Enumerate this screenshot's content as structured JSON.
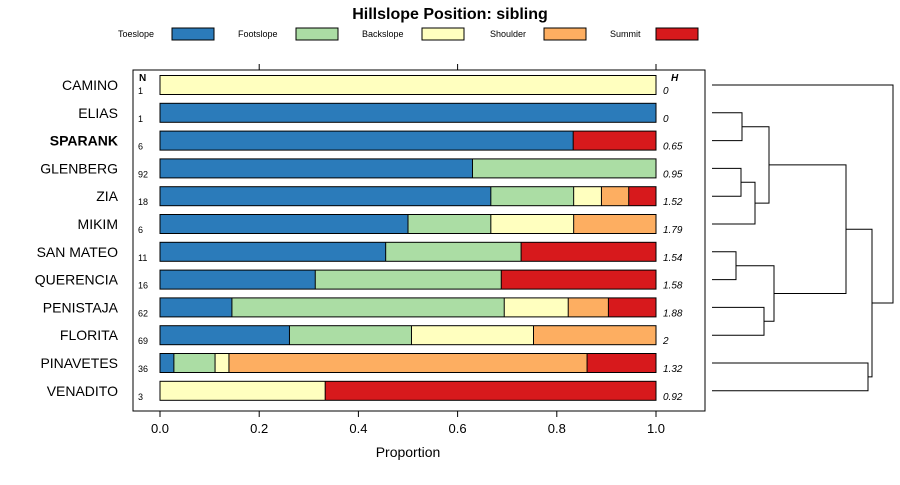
{
  "chart_data": {
    "type": "bar",
    "stacked": true,
    "orientation": "horizontal",
    "title": "Hillslope Position: sibling",
    "xlabel": "Proportion",
    "xlim": [
      0,
      1
    ],
    "xticks": [
      "0.0",
      "0.2",
      "0.4",
      "0.6",
      "0.8",
      "1.0"
    ],
    "n_header": "N",
    "h_header": "H",
    "legend": [
      {
        "name": "Toeslope",
        "color": "#2b7bba"
      },
      {
        "name": "Footslope",
        "color": "#abdda4"
      },
      {
        "name": "Backslope",
        "color": "#ffffbf"
      },
      {
        "name": "Shoulder",
        "color": "#fdae61"
      },
      {
        "name": "Summit",
        "color": "#d7191c"
      }
    ],
    "rows": [
      {
        "name": "CAMINO",
        "bold": false,
        "n": "1",
        "h": "0",
        "values": [
          0,
          0,
          1.0,
          0,
          0
        ]
      },
      {
        "name": "ELIAS",
        "bold": false,
        "n": "1",
        "h": "0",
        "values": [
          1.0,
          0,
          0,
          0,
          0
        ]
      },
      {
        "name": "SPARANK",
        "bold": true,
        "n": "6",
        "h": "0.65",
        "values": [
          0.833,
          0,
          0,
          0,
          0.167
        ]
      },
      {
        "name": "GLENBERG",
        "bold": false,
        "n": "92",
        "h": "0.95",
        "values": [
          0.63,
          0.37,
          0,
          0,
          0
        ]
      },
      {
        "name": "ZIA",
        "bold": false,
        "n": "18",
        "h": "1.52",
        "values": [
          0.667,
          0.167,
          0.056,
          0.055,
          0.055
        ]
      },
      {
        "name": "MIKIM",
        "bold": false,
        "n": "6",
        "h": "1.79",
        "values": [
          0.5,
          0.167,
          0.167,
          0.166,
          0
        ]
      },
      {
        "name": "SAN MATEO",
        "bold": false,
        "n": "11",
        "h": "1.54",
        "values": [
          0.455,
          0.273,
          0,
          0,
          0.272
        ]
      },
      {
        "name": "QUERENCIA",
        "bold": false,
        "n": "16",
        "h": "1.58",
        "values": [
          0.313,
          0.375,
          0,
          0,
          0.312
        ]
      },
      {
        "name": "PENISTAJA",
        "bold": false,
        "n": "62",
        "h": "1.88",
        "values": [
          0.145,
          0.549,
          0.129,
          0.081,
          0.096
        ]
      },
      {
        "name": "FLORITA",
        "bold": false,
        "n": "69",
        "h": "2",
        "values": [
          0.261,
          0.246,
          0.246,
          0.247,
          0
        ]
      },
      {
        "name": "PINAVETES",
        "bold": false,
        "n": "36",
        "h": "1.32",
        "values": [
          0.028,
          0.083,
          0.028,
          0.722,
          0.139
        ]
      },
      {
        "name": "VENADITO",
        "bold": false,
        "n": "3",
        "h": "0.92",
        "values": [
          0,
          0,
          0.333,
          0,
          0.667
        ]
      }
    ]
  }
}
